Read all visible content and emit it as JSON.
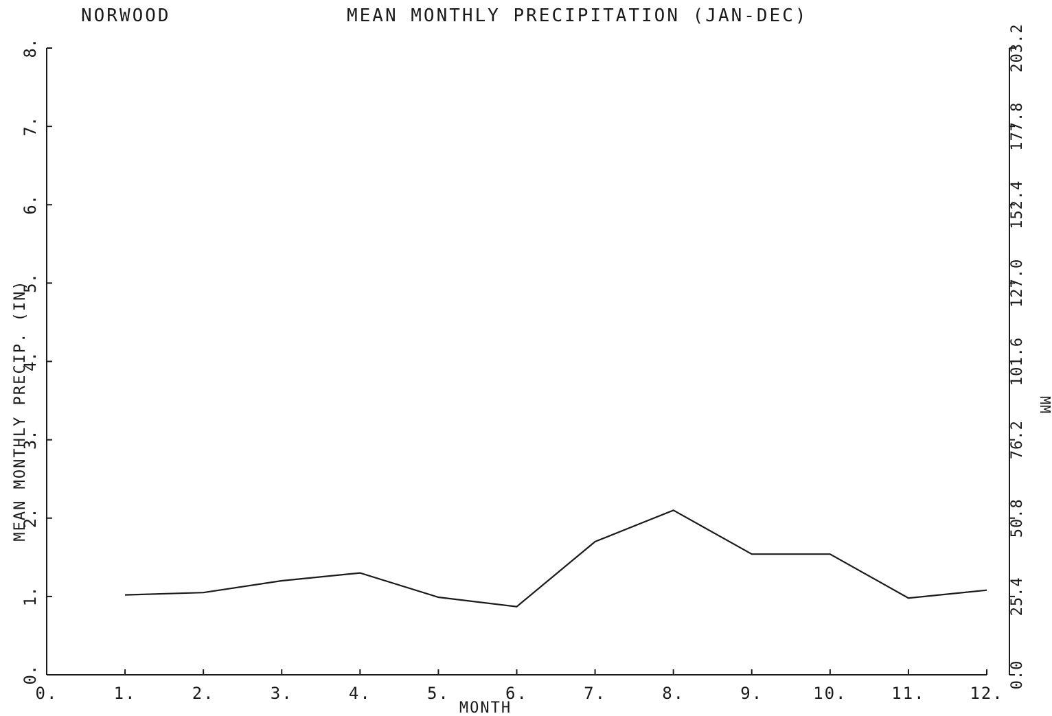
{
  "header": {
    "station": "NORWOOD",
    "title": "MEAN MONTHLY PRECIPITATION (JAN-DEC)"
  },
  "chart_data": {
    "type": "line",
    "title": "MEAN MONTHLY PRECIPITATION (JAN-DEC)",
    "subtitle": "NORWOOD",
    "xlabel": "MONTH",
    "ylabel": "MEAN MONTHLY PRECIP. (IN)",
    "ylabel_right": "MM",
    "xlim": [
      0,
      12
    ],
    "ylim": [
      0,
      8
    ],
    "x_tick_labels": [
      "0.",
      "1.",
      "2.",
      "3.",
      "4.",
      "5.",
      "6.",
      "7.",
      "8.",
      "9.",
      "10.",
      "11.",
      "12."
    ],
    "y_tick_labels": [
      "0.",
      "1.",
      "2.",
      "3.",
      "4.",
      "5.",
      "6.",
      "7.",
      "8."
    ],
    "y_right_tick_labels": [
      "0.0",
      "25.4",
      "50.8",
      "76.2",
      "101.6",
      "127.0",
      "152.4",
      "177.8",
      "203.2"
    ],
    "grid": false,
    "series": [
      {
        "x": [
          1,
          2,
          3,
          4,
          5,
          6,
          7,
          8,
          9,
          10,
          11,
          12
        ],
        "y": [
          1.02,
          1.05,
          1.2,
          1.3,
          0.99,
          0.87,
          1.7,
          2.1,
          1.54,
          1.54,
          0.98,
          1.08
        ]
      }
    ]
  }
}
